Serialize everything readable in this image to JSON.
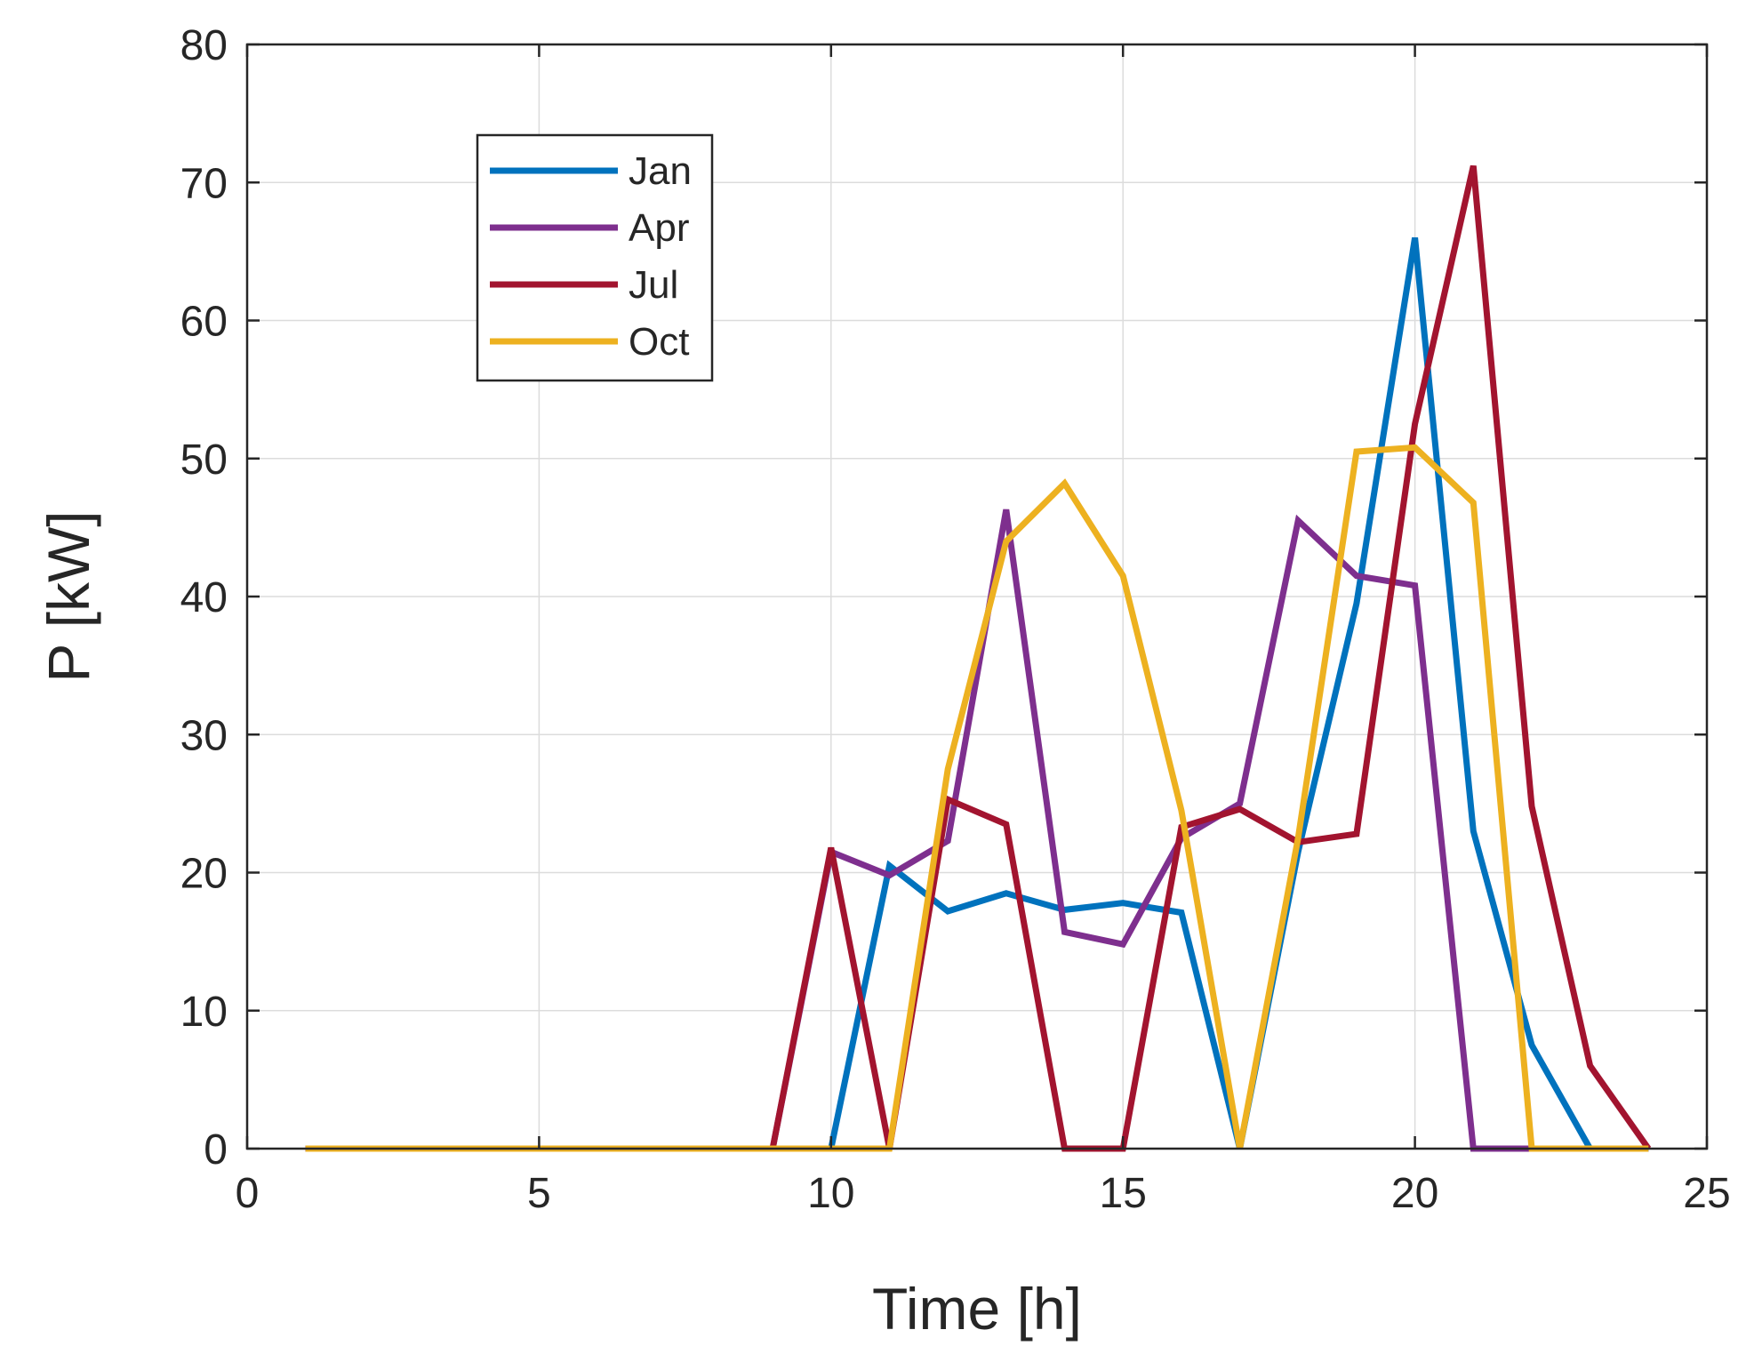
{
  "chart_data": {
    "type": "line",
    "title": "",
    "xlabel": "Time [h]",
    "ylabel": "P [kW]",
    "xlim": [
      0,
      25
    ],
    "ylim": [
      0,
      80
    ],
    "xticks": [
      0,
      5,
      10,
      15,
      20,
      25
    ],
    "yticks": [
      0,
      10,
      20,
      30,
      40,
      50,
      60,
      70,
      80
    ],
    "grid": true,
    "legend": "top-left",
    "x": [
      1,
      2,
      3,
      4,
      5,
      6,
      7,
      8,
      9,
      10,
      11,
      12,
      13,
      14,
      15,
      16,
      17,
      18,
      19,
      20,
      21,
      22,
      23,
      24
    ],
    "series": [
      {
        "name": "Jan",
        "color": "#0072BD",
        "values": [
          0,
          0,
          0,
          0,
          0,
          0,
          0,
          0,
          0,
          0,
          20.5,
          17.2,
          18.5,
          17.3,
          17.8,
          17.1,
          0,
          21.5,
          39.5,
          66,
          23,
          7.5,
          0,
          0
        ]
      },
      {
        "name": "Apr",
        "color": "#7E2F8E",
        "values": [
          0,
          0,
          0,
          0,
          0,
          0,
          0,
          0,
          0,
          21.5,
          19.8,
          22.3,
          46.3,
          15.7,
          14.8,
          22.5,
          25,
          45.5,
          41.5,
          40.8,
          0,
          0,
          0,
          0
        ]
      },
      {
        "name": "Jul",
        "color": "#A2142F",
        "values": [
          0,
          0,
          0,
          0,
          0,
          0,
          0,
          0,
          0,
          21.8,
          0,
          25.3,
          23.5,
          0,
          0,
          23.3,
          24.6,
          22.2,
          22.8,
          52.5,
          71.2,
          24.8,
          6,
          0
        ]
      },
      {
        "name": "Oct",
        "color": "#EDB120",
        "values": [
          0,
          0,
          0,
          0,
          0,
          0,
          0,
          0,
          0,
          0,
          0,
          27.5,
          44,
          48.2,
          41.5,
          24.5,
          0,
          22.5,
          50.5,
          50.8,
          46.8,
          0,
          0,
          0
        ]
      }
    ]
  }
}
